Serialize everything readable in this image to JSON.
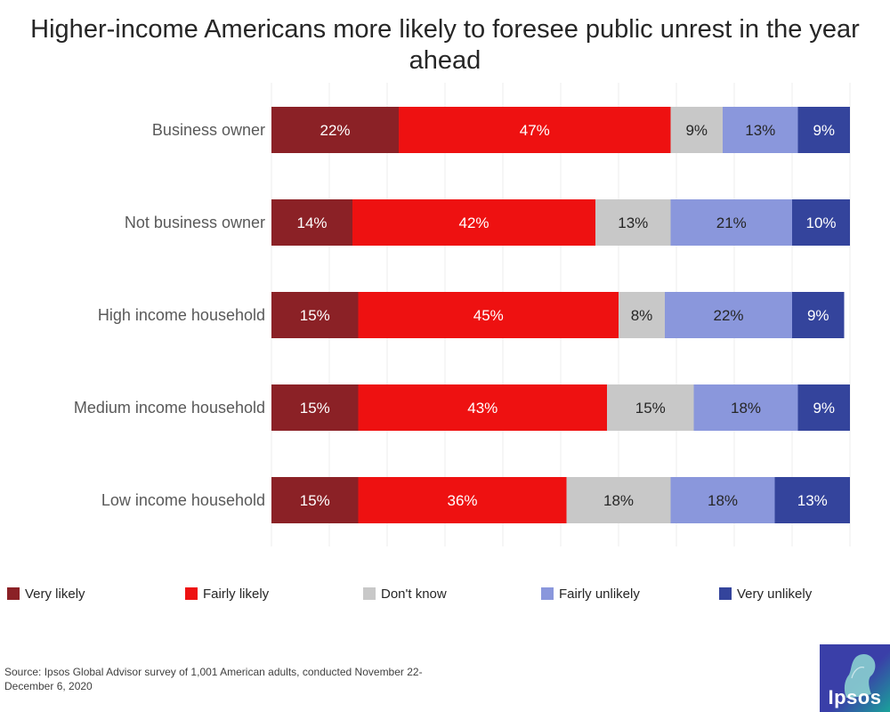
{
  "chart_data": {
    "type": "bar",
    "orientation": "horizontal",
    "stacked": true,
    "title": "Higher-income Americans more likely to foresee public unrest in the year ahead",
    "categories": [
      "Business owner",
      "Not business owner",
      "High income household",
      "Medium income household",
      "Low income household"
    ],
    "series": [
      {
        "name": "Very likely",
        "color": "#8b2126",
        "label_color": "#ffffff",
        "values": [
          22,
          14,
          15,
          15,
          15
        ]
      },
      {
        "name": "Fairly likely",
        "color": "#ee1111",
        "label_color": "#ffffff",
        "values": [
          47,
          42,
          45,
          43,
          36
        ]
      },
      {
        "name": "Don't know",
        "color": "#c8c8c8",
        "label_color": "#262626",
        "values": [
          9,
          13,
          8,
          15,
          18
        ]
      },
      {
        "name": "Fairly unlikely",
        "color": "#8a97dc",
        "label_color": "#262626",
        "values": [
          13,
          21,
          22,
          18,
          18
        ]
      },
      {
        "name": "Very unlikely",
        "color": "#34449c",
        "label_color": "#ffffff",
        "values": [
          9,
          10,
          9,
          9,
          13
        ]
      }
    ],
    "value_suffix": "%",
    "xlim": [
      0,
      100
    ],
    "grid": true,
    "legend_position": "bottom"
  },
  "source": "Source: Ipsos Global Advisor survey of 1,001 American adults, conducted November 22-December 6, 2020",
  "logo": {
    "text": "Ipsos"
  }
}
